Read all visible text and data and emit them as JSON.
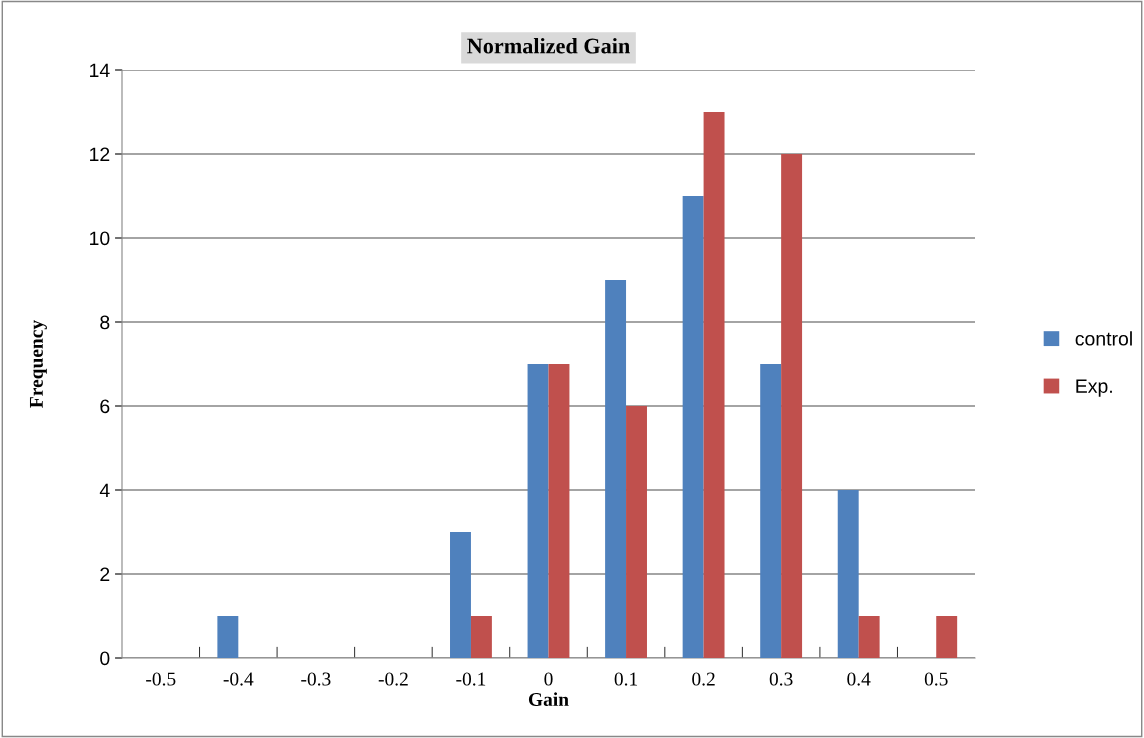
{
  "chart_data": {
    "type": "bar",
    "title": "Normalized Gain",
    "xlabel": "Gain",
    "ylabel": "Frequency",
    "categories": [
      "-0.5",
      "-0.4",
      "-0.3",
      "-0.2",
      "-0.1",
      "0",
      "0.1",
      "0.2",
      "0.3",
      "0.4",
      "0.5"
    ],
    "series": [
      {
        "name": "control",
        "color": "#4f81bd",
        "values": [
          0,
          1,
          0,
          0,
          3,
          7,
          9,
          11,
          7,
          4,
          0
        ]
      },
      {
        "name": "Exp.",
        "color": "#c0504d",
        "values": [
          0,
          0,
          0,
          0,
          1,
          7,
          6,
          13,
          12,
          1,
          1
        ]
      }
    ],
    "ylim": [
      0,
      14
    ],
    "yticks": [
      0,
      2,
      4,
      6,
      8,
      10,
      12,
      14
    ],
    "grid": "y",
    "legend": "right"
  }
}
